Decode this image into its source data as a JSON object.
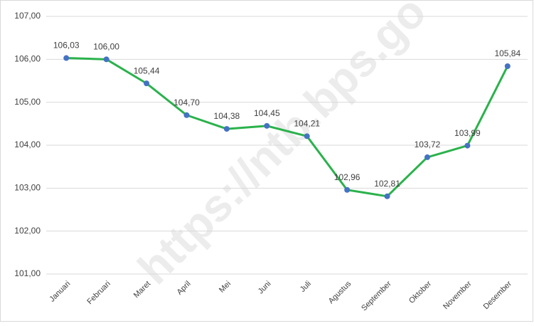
{
  "chart_data": {
    "type": "line",
    "watermark": "https://ntb.bps.go",
    "categories": [
      "Januari",
      "Februari",
      "Maret",
      "April",
      "Mei",
      "Juni",
      "Juli",
      "Agustus",
      "September",
      "Oktober",
      "November",
      "Desember"
    ],
    "values": [
      106.03,
      106.0,
      105.44,
      104.7,
      104.38,
      104.45,
      104.21,
      102.96,
      102.81,
      103.72,
      103.99,
      105.84
    ],
    "value_labels": [
      "106,03",
      "106,00",
      "105,44",
      "104,70",
      "104,38",
      "104,45",
      "104,21",
      "102,96",
      "102,81",
      "103,72",
      "103,99",
      "105,84"
    ],
    "color": "#2bb24c",
    "marker_color": "#4472c4",
    "ylim": [
      101,
      107
    ],
    "yticks": [
      {
        "value": 101,
        "label": "101,00"
      },
      {
        "value": 102,
        "label": "102,00"
      },
      {
        "value": 103,
        "label": "103,00"
      },
      {
        "value": 104,
        "label": "104,00"
      },
      {
        "value": 105,
        "label": "105,00"
      },
      {
        "value": 106,
        "label": "106,00"
      },
      {
        "value": 107,
        "label": "107,00"
      }
    ],
    "grid": true
  }
}
